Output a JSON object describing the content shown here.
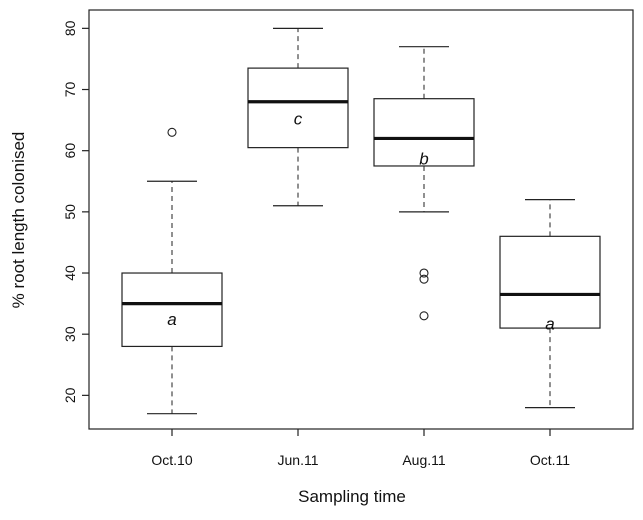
{
  "chart_data": {
    "type": "boxplot",
    "xlabel": "Sampling time",
    "ylabel": "% root length colonised",
    "categories": [
      "Oct.10",
      "Jun.11",
      "Aug.11",
      "Oct.11"
    ],
    "ylim": [
      14.5,
      83
    ],
    "yticks": [
      20,
      30,
      40,
      50,
      60,
      70,
      80
    ],
    "grid": false,
    "boxes": [
      {
        "category": "Oct.10",
        "whisker_low": 17,
        "q1": 28,
        "median": 35,
        "q3": 40,
        "whisker_high": 55,
        "outliers": [
          63
        ],
        "letter": "a"
      },
      {
        "category": "Jun.11",
        "whisker_low": 51,
        "q1": 60.5,
        "median": 68,
        "q3": 73.5,
        "whisker_high": 80,
        "outliers": [],
        "letter": "c"
      },
      {
        "category": "Aug.11",
        "whisker_low": 50,
        "q1": 57.5,
        "median": 62,
        "q3": 68.5,
        "whisker_high": 77,
        "outliers": [
          40,
          39,
          33
        ],
        "letter": "b"
      },
      {
        "category": "Oct.11",
        "whisker_low": 18,
        "q1": 31,
        "median": 36.5,
        "q3": 46,
        "whisker_high": 52,
        "outliers": [],
        "letter": "a"
      }
    ]
  }
}
